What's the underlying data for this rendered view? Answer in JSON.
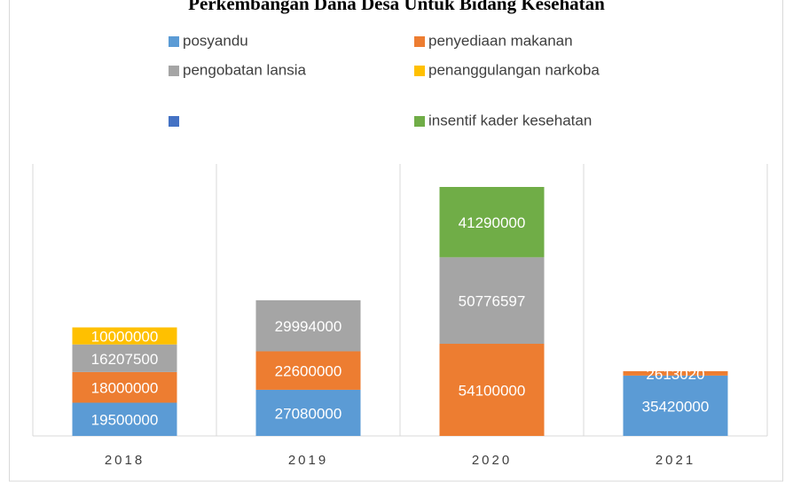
{
  "chart_data": {
    "type": "stacked-bar",
    "title": "Perkembangan Dana Desa Untuk Bidang Kesehatan",
    "categories": [
      "2018",
      "2019",
      "2020",
      "2021"
    ],
    "series": [
      {
        "name": "posyandu",
        "color": "#5b9bd5",
        "values": [
          19500000,
          27080000,
          null,
          35420000
        ]
      },
      {
        "name": "penyediaan makanan",
        "color": "#ed7d31",
        "values": [
          18000000,
          22600000,
          54100000,
          2613020
        ]
      },
      {
        "name": "pengobatan lansia",
        "color": "#a5a5a5",
        "values": [
          16207500,
          29994000,
          50776597,
          null
        ]
      },
      {
        "name": "penanggulangan narkoba",
        "color": "#ffc000",
        "values": [
          10000000,
          null,
          null,
          null
        ]
      },
      {
        "name": null,
        "color": "#4472c4",
        "values": [
          null,
          null,
          null,
          null
        ]
      },
      {
        "name": "insentif kader kesehatan",
        "color": "#70ad47",
        "values": [
          null,
          null,
          41290000,
          null
        ]
      }
    ],
    "grid": true
  }
}
